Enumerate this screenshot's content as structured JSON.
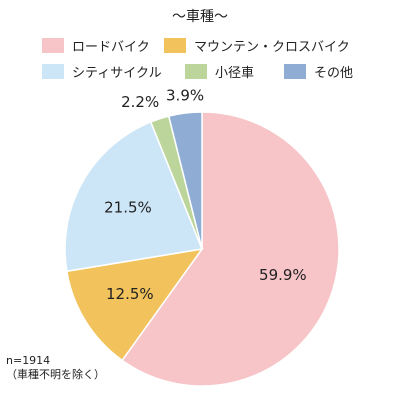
{
  "chart_data": {
    "type": "pie",
    "title": "～車種～",
    "slices": [
      {
        "label": "ロードバイク",
        "value": 59.9,
        "value_label": "59.9%",
        "color": "#f7c4c8"
      },
      {
        "label": "マウンテン・クロスバイク",
        "value": 12.5,
        "value_label": "12.5%",
        "color": "#f2c35c"
      },
      {
        "label": "シティサイクル",
        "value": 21.5,
        "value_label": "21.5%",
        "color": "#cde6f7"
      },
      {
        "label": "小径車",
        "value": 2.2,
        "value_label": "2.2%",
        "color": "#bcd59b"
      },
      {
        "label": "その他",
        "value": 3.9,
        "value_label": "3.9%",
        "color": "#8fadd4"
      }
    ],
    "start": "12 o'clock",
    "direction": "clockwise",
    "legend_position": "top"
  },
  "notes": {
    "sample_size": "n=1914",
    "exclusion": "（車種不明を除く）"
  }
}
